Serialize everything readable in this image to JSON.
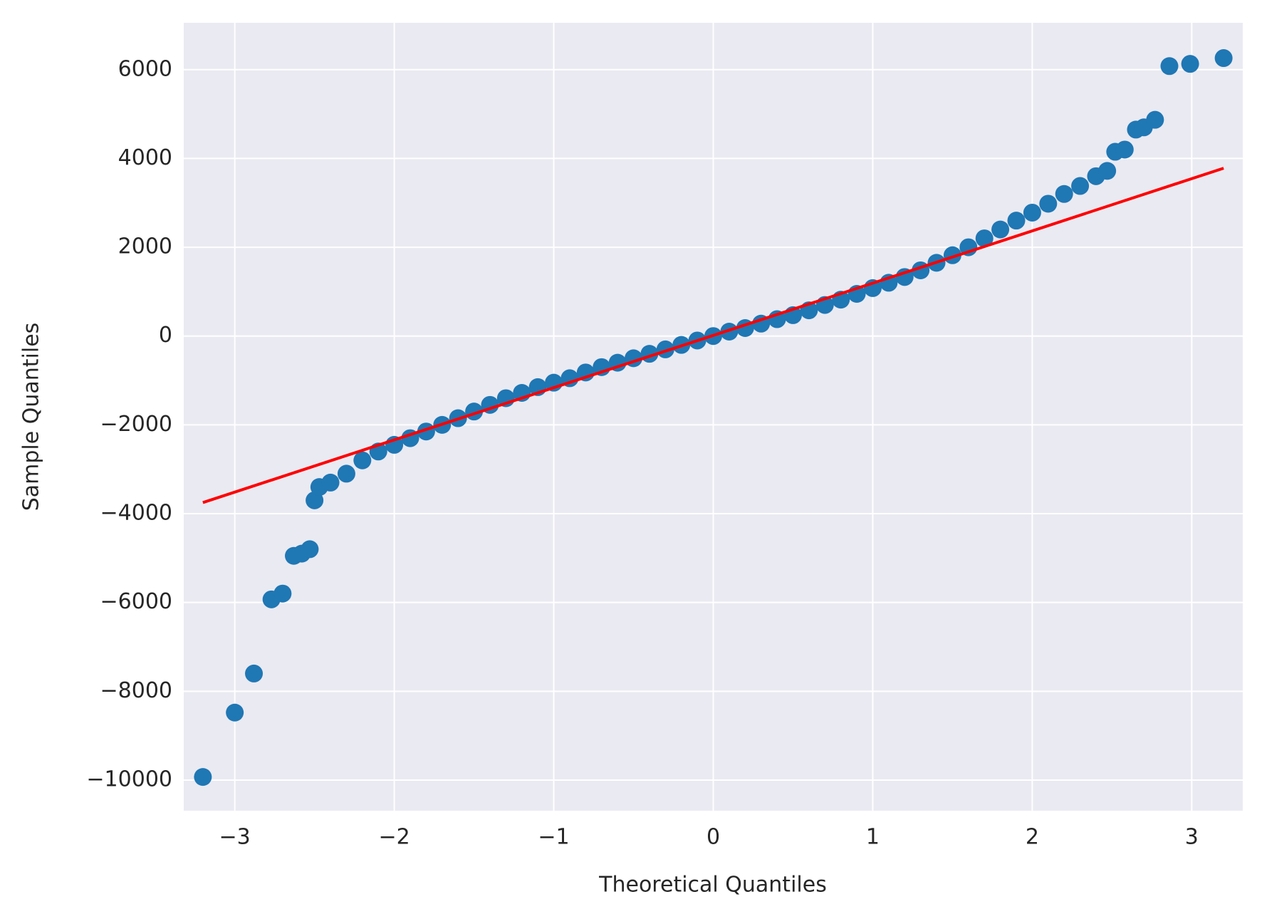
{
  "chart_data": {
    "type": "scatter",
    "xlabel": "Theoretical Quantiles",
    "ylabel": "Sample Quantiles",
    "xlim": [
      -3.32,
      3.32
    ],
    "ylim": [
      -10690,
      7055
    ],
    "xticks": [
      {
        "value": -3,
        "label": "−3"
      },
      {
        "value": -2,
        "label": "−2"
      },
      {
        "value": -1,
        "label": "−1"
      },
      0,
      1,
      2,
      3
    ],
    "yticks": [
      {
        "value": -10000,
        "label": "−10000"
      },
      {
        "value": -8000,
        "label": "−8000"
      },
      {
        "value": -6000,
        "label": "−6000"
      },
      {
        "value": -4000,
        "label": "−4000"
      },
      {
        "value": -2000,
        "label": "−2000"
      },
      0,
      2000,
      4000,
      6000
    ],
    "grid": true,
    "background": "#eaeaf2",
    "series": [
      {
        "type": "scatter",
        "color": "#1f77b4",
        "x": [
          -3.2,
          -3.0,
          -2.88,
          -2.77,
          -2.7,
          -2.63,
          -2.58,
          -2.53,
          -2.5,
          -2.47,
          -2.4,
          -2.3,
          -2.2,
          -2.1,
          -2.0,
          -1.9,
          -1.8,
          -1.7,
          -1.6,
          -1.5,
          -1.4,
          -1.3,
          -1.2,
          -1.1,
          -1.0,
          -0.9,
          -0.8,
          -0.7,
          -0.6,
          -0.5,
          -0.4,
          -0.3,
          -0.2,
          -0.1,
          0,
          0.1,
          0.2,
          0.3,
          0.4,
          0.5,
          0.6,
          0.7,
          0.8,
          0.9,
          1.0,
          1.1,
          1.2,
          1.3,
          1.4,
          1.5,
          1.6,
          1.7,
          1.8,
          1.9,
          2.0,
          2.1,
          2.2,
          2.3,
          2.4,
          2.47,
          2.52,
          2.58,
          2.65,
          2.7,
          2.77,
          2.86,
          2.99,
          3.2
        ],
        "values": [
          -9930,
          -8480,
          -7600,
          -5930,
          -5800,
          -4950,
          -4900,
          -4800,
          -3700,
          -3400,
          -3300,
          -3100,
          -2800,
          -2600,
          -2450,
          -2300,
          -2150,
          -2000,
          -1850,
          -1700,
          -1550,
          -1400,
          -1280,
          -1150,
          -1050,
          -950,
          -820,
          -700,
          -600,
          -500,
          -400,
          -300,
          -200,
          -100,
          0,
          100,
          180,
          280,
          380,
          470,
          580,
          700,
          820,
          950,
          1080,
          1200,
          1330,
          1480,
          1650,
          1820,
          2000,
          2200,
          2400,
          2600,
          2780,
          2980,
          3200,
          3380,
          3600,
          3720,
          4150,
          4200,
          4650,
          4700,
          4870,
          6080,
          6130,
          6260
        ]
      },
      {
        "type": "line",
        "color": "#ff0000",
        "x": [
          -3.2,
          3.2
        ],
        "values": [
          -3750,
          3780
        ]
      }
    ]
  }
}
